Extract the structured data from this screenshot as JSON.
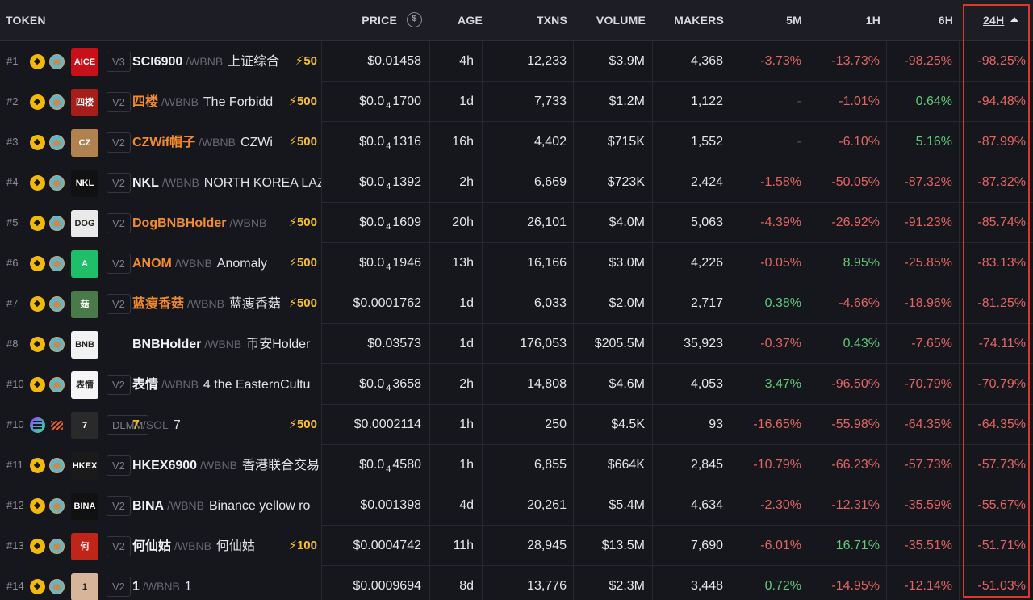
{
  "header": {
    "token": "TOKEN",
    "price": "PRICE",
    "price_icon": "$",
    "age": "AGE",
    "txns": "TXNS",
    "volume": "VOLUME",
    "makers": "MAKERS",
    "m5": "5M",
    "h1": "1H",
    "h6": "6H",
    "h24": "24H"
  },
  "highlight_color": "#e0372c",
  "rows": [
    {
      "rank": "#1",
      "chain": "bnb-chain-icon",
      "dex": "pancakeswap-icon",
      "logo_text": "AICE",
      "logo_bg": "#c8101b",
      "version": "V3",
      "symbol": "SCI6900",
      "symbol_style": "plain",
      "pair": "/WBNB",
      "name": "上证综合",
      "boost": "⚡50",
      "price": "$0.01458",
      "price_pre": "",
      "price_sub": "",
      "price_post": "",
      "age": "4h",
      "txns": "12,233",
      "volume": "$3.9M",
      "makers": "4,368",
      "m5": "-3.73%",
      "h1": "-13.73%",
      "h6": "-98.25%",
      "h24": "-98.25%"
    },
    {
      "rank": "#2",
      "chain": "bnb-chain-icon",
      "dex": "pancakeswap-icon",
      "logo_text": "四楼",
      "logo_bg": "#a51e1a",
      "version": "V2",
      "symbol": "四楼",
      "symbol_style": "boost",
      "pair": "/WBNB",
      "name": "The Forbidd",
      "boost": "⚡500",
      "price": "",
      "price_pre": "$0.0",
      "price_sub": "4",
      "price_post": "1700",
      "age": "1d",
      "txns": "7,733",
      "volume": "$1.2M",
      "makers": "1,122",
      "m5": "-",
      "h1": "-1.01%",
      "h6": "0.64%",
      "h24": "-94.48%"
    },
    {
      "rank": "#3",
      "chain": "bnb-chain-icon",
      "dex": "pancakeswap-icon",
      "logo_text": "CZ",
      "logo_bg": "#b08250",
      "version": "V2",
      "symbol": "CZWif帽子",
      "symbol_style": "boost",
      "pair": "/WBNB",
      "name": "CZWi",
      "boost": "⚡500",
      "price": "",
      "price_pre": "$0.0",
      "price_sub": "4",
      "price_post": "1316",
      "age": "16h",
      "txns": "4,402",
      "volume": "$715K",
      "makers": "1,552",
      "m5": "-",
      "h1": "-6.10%",
      "h6": "5.16%",
      "h24": "-87.99%"
    },
    {
      "rank": "#4",
      "chain": "bnb-chain-icon",
      "dex": "pancakeswap-icon",
      "logo_text": "NKL",
      "logo_bg": "#111111",
      "version": "V2",
      "symbol": "NKL",
      "symbol_style": "plain",
      "pair": "/WBNB",
      "name": "NORTH KOREA LAZ",
      "boost": "",
      "price": "$0.0₄1392",
      "price_pre": "$0.0",
      "price_sub": "4",
      "price_post": "1392",
      "age": "2h",
      "txns": "6,669",
      "volume": "$723K",
      "makers": "2,424",
      "m5": "-1.58%",
      "h1": "-50.05%",
      "h6": "-87.32%",
      "h24": "-87.32%"
    },
    {
      "rank": "#5",
      "chain": "bnb-chain-icon",
      "dex": "pancakeswap-icon",
      "logo_text": "DOG",
      "logo_bg": "#e9e9e9",
      "version": "V2",
      "symbol": "DogBNBHolder",
      "symbol_style": "boost",
      "pair": "/WBNB",
      "name": "",
      "boost": "⚡500",
      "price": "",
      "price_pre": "$0.0",
      "price_sub": "4",
      "price_post": "1609",
      "age": "20h",
      "txns": "26,101",
      "volume": "$4.0M",
      "makers": "5,063",
      "m5": "-4.39%",
      "h1": "-26.92%",
      "h6": "-91.23%",
      "h24": "-85.74%"
    },
    {
      "rank": "#6",
      "chain": "bnb-chain-icon",
      "dex": "pancakeswap-icon",
      "logo_text": "A",
      "logo_bg": "#1fbf6a",
      "version": "V2",
      "symbol": "ANOM",
      "symbol_style": "boost",
      "pair": "/WBNB",
      "name": "Anomaly",
      "boost": "⚡500",
      "price": "",
      "price_pre": "$0.0",
      "price_sub": "4",
      "price_post": "1946",
      "age": "13h",
      "txns": "16,166",
      "volume": "$3.0M",
      "makers": "4,226",
      "m5": "-0.05%",
      "h1": "8.95%",
      "h6": "-25.85%",
      "h24": "-83.13%"
    },
    {
      "rank": "#7",
      "chain": "bnb-chain-icon",
      "dex": "pancakeswap-icon",
      "logo_text": "菇",
      "logo_bg": "#4a7a4a",
      "version": "V2",
      "symbol": "蓝瘦香菇",
      "symbol_style": "boost",
      "pair": "/WBNB",
      "name": "蓝瘦香菇",
      "boost": "⚡500",
      "price": "$0.0001762",
      "price_pre": "",
      "price_sub": "",
      "price_post": "",
      "age": "1d",
      "txns": "6,033",
      "volume": "$2.0M",
      "makers": "2,717",
      "m5": "0.38%",
      "h1": "-4.66%",
      "h6": "-18.96%",
      "h24": "-81.25%"
    },
    {
      "rank": "#8",
      "chain": "bnb-chain-icon",
      "dex": "pancakeswap-icon",
      "logo_text": "BNB",
      "logo_bg": "#f2f2f2",
      "version": "",
      "symbol": "BNBHolder",
      "symbol_style": "plain",
      "pair": "/WBNB",
      "name": "币安Holder",
      "boost": "",
      "price": "$0.03573",
      "price_pre": "",
      "price_sub": "",
      "price_post": "",
      "age": "1d",
      "txns": "176,053",
      "volume": "$205.5M",
      "makers": "35,923",
      "m5": "-0.37%",
      "h1": "0.43%",
      "h6": "-7.65%",
      "h24": "-74.11%"
    },
    {
      "rank": "#10",
      "chain": "bnb-chain-icon",
      "dex": "pancakeswap-icon",
      "logo_text": "表情",
      "logo_bg": "#f5f5f5",
      "version": "V2",
      "symbol": "表情",
      "symbol_style": "plain",
      "pair": "/WBNB",
      "name": "4 the EasternCultu",
      "boost": "",
      "price": "",
      "price_pre": "$0.0",
      "price_sub": "4",
      "price_post": "3658",
      "age": "2h",
      "txns": "14,808",
      "volume": "$4.6M",
      "makers": "4,053",
      "m5": "3.47%",
      "h1": "-96.50%",
      "h6": "-70.79%",
      "h24": "-70.79%"
    },
    {
      "rank": "#10",
      "chain": "solana-icon",
      "dex": "meteora-icon",
      "logo_text": "7",
      "logo_bg": "#2a2a2a",
      "version": "DLMM",
      "symbol": "7",
      "symbol_style": "boosty",
      "pair": "/SOL",
      "name": "7",
      "boost": "⚡500",
      "price": "$0.0002114",
      "price_pre": "",
      "price_sub": "",
      "price_post": "",
      "age": "1h",
      "txns": "250",
      "volume": "$4.5K",
      "makers": "93",
      "m5": "-16.65%",
      "h1": "-55.98%",
      "h6": "-64.35%",
      "h24": "-64.35%"
    },
    {
      "rank": "#11",
      "chain": "bnb-chain-icon",
      "dex": "pancakeswap-icon",
      "logo_text": "HKEX",
      "logo_bg": "#1a1a1a",
      "version": "V2",
      "symbol": "HKEX6900",
      "symbol_style": "plain",
      "pair": "/WBNB",
      "name": "香港联合交易",
      "boost": "",
      "price": "",
      "price_pre": "$0.0",
      "price_sub": "4",
      "price_post": "4580",
      "age": "1h",
      "txns": "6,855",
      "volume": "$664K",
      "makers": "2,845",
      "m5": "-10.79%",
      "h1": "-66.23%",
      "h6": "-57.73%",
      "h24": "-57.73%"
    },
    {
      "rank": "#12",
      "chain": "bnb-chain-icon",
      "dex": "pancakeswap-icon",
      "logo_text": "BINA",
      "logo_bg": "#111111",
      "version": "V2",
      "symbol": "BINA",
      "symbol_style": "plain",
      "pair": "/WBNB",
      "name": "Binance yellow ro",
      "boost": "",
      "price": "$0.001398",
      "price_pre": "",
      "price_sub": "",
      "price_post": "",
      "age": "4d",
      "txns": "20,261",
      "volume": "$5.4M",
      "makers": "4,634",
      "m5": "-2.30%",
      "h1": "-12.31%",
      "h6": "-35.59%",
      "h24": "-55.67%"
    },
    {
      "rank": "#13",
      "chain": "bnb-chain-icon",
      "dex": "pancakeswap-icon",
      "logo_text": "何",
      "logo_bg": "#c0251a",
      "version": "V2",
      "symbol": "何仙姑",
      "symbol_style": "plain",
      "pair": "/WBNB",
      "name": "何仙姑",
      "boost": "⚡100",
      "price": "$0.0004742",
      "price_pre": "",
      "price_sub": "",
      "price_post": "",
      "age": "11h",
      "txns": "28,945",
      "volume": "$13.5M",
      "makers": "7,690",
      "m5": "-6.01%",
      "h1": "16.71%",
      "h6": "-35.51%",
      "h24": "-51.71%"
    },
    {
      "rank": "#14",
      "chain": "bnb-chain-icon",
      "dex": "pancakeswap-icon",
      "logo_text": "1",
      "logo_bg": "#d7b59a",
      "version": "V2",
      "symbol": "1",
      "symbol_style": "plain",
      "pair": "/WBNB",
      "name": "1",
      "boost": "",
      "price": "$0.0009694",
      "price_pre": "",
      "price_sub": "",
      "price_post": "",
      "age": "8d",
      "txns": "13,776",
      "volume": "$2.3M",
      "makers": "3,448",
      "m5": "0.72%",
      "h1": "-14.95%",
      "h6": "-12.14%",
      "h24": "-51.03%"
    }
  ]
}
